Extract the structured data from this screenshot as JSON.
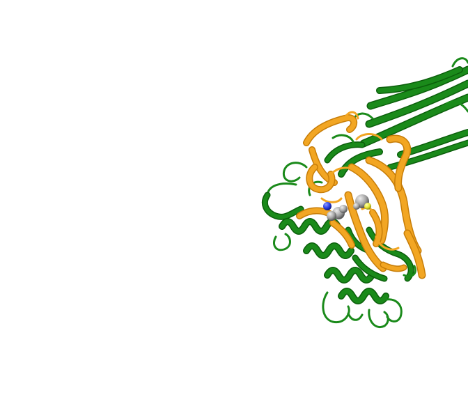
{
  "scene": {
    "background_color": "#ffffff",
    "chain_a_color": "#1a8a1a",
    "chain_a_dark": "#0b5e0b",
    "chain_b_color": "#f2a623",
    "chain_b_dark": "#c77d08",
    "ligand_carbon_color": "#a3a3a3",
    "ligand_nitrogen_color": "#2b3fe6",
    "ligand_sulfur_color": "#e6e632"
  }
}
